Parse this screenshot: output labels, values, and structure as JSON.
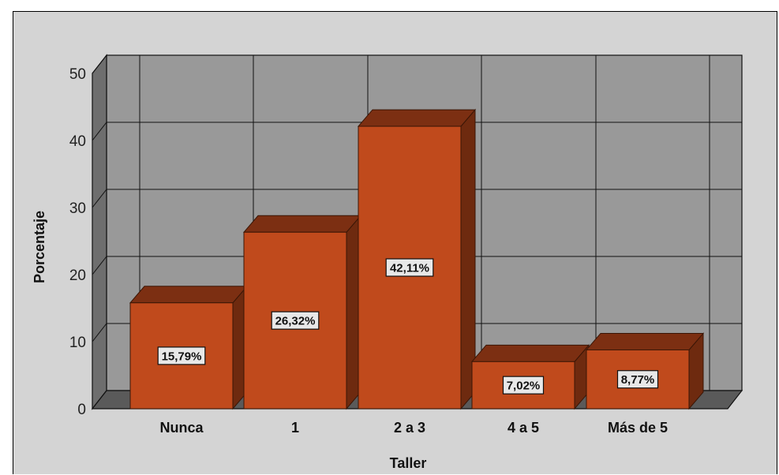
{
  "chart_data": {
    "type": "bar",
    "categories": [
      "Nunca",
      "1",
      "2 a 3",
      "4 a 5",
      "Más de 5"
    ],
    "values": [
      15.79,
      26.32,
      42.11,
      7.02,
      8.77
    ],
    "data_labels": [
      "15,79%",
      "26,32%",
      "42,11%",
      "7,02%",
      "8,77%"
    ],
    "title": "",
    "xlabel": "Taller",
    "ylabel": "Porcentaje",
    "ylim": [
      0,
      50
    ],
    "yticks": [
      "0",
      "10",
      "20",
      "30",
      "40",
      "50"
    ],
    "grid": true,
    "three_d": true,
    "legend": "none"
  },
  "colors": {
    "bar_front": "#c04a1c",
    "bar_top": "#7c2f12",
    "bar_side": "#6e2a0f",
    "plot_back": "#999999",
    "plot_floor": "#5a5a5a",
    "plot_left_wall": "#6e6e6e",
    "chart_background": "#d4d4d4",
    "gridline": "#111111",
    "label_box": "#e8e8e8"
  }
}
